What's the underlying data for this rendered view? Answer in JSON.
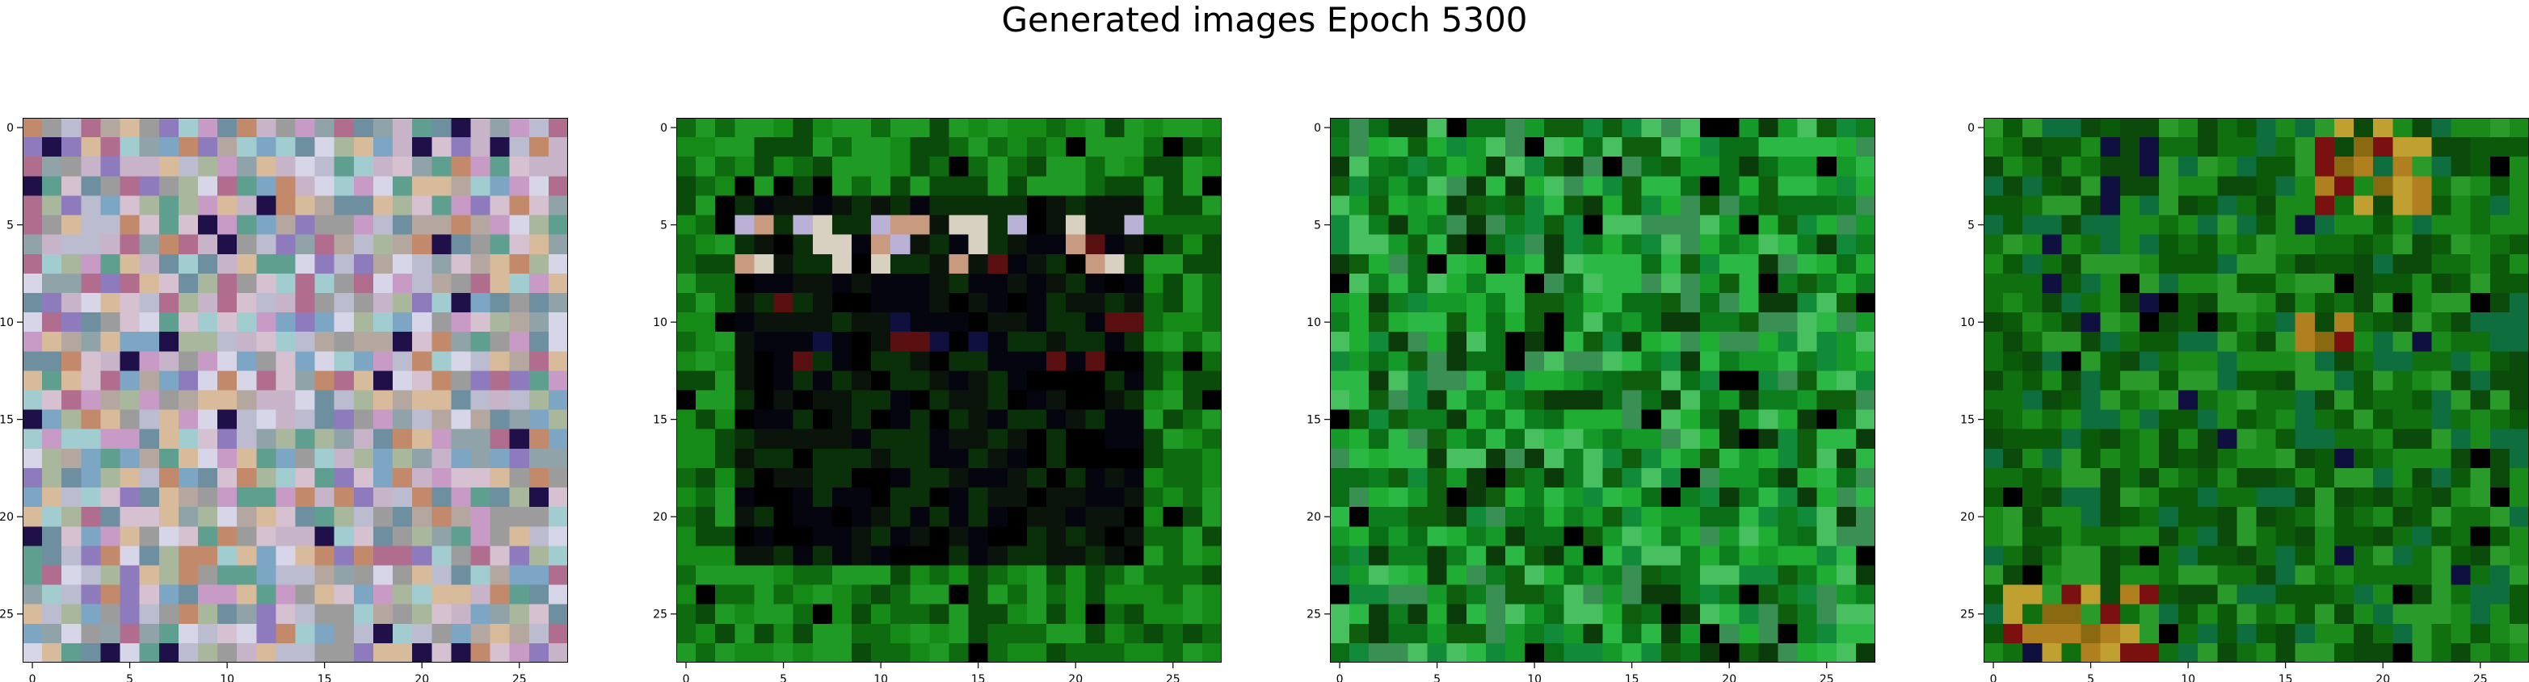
{
  "figure": {
    "suptitle": "Generated images Epoch 5300"
  },
  "chart_data": [
    {
      "type": "heatmap",
      "grid_size": 28,
      "xticks": [
        0,
        5,
        10,
        15,
        20,
        25
      ],
      "yticks": [
        0,
        5,
        10,
        15,
        20,
        25
      ],
      "pattern": "pastel-noise",
      "palette": [
        "#b4a7a0",
        "#c8b4c8",
        "#8fa3a9",
        "#d6c1d1",
        "#a9b79d",
        "#bcbcd0",
        "#6e8fa0",
        "#c79bc5",
        "#a2cdd0",
        "#d7bb9a",
        "#8d7bbd",
        "#9c9c9c",
        "#5f9f8f",
        "#b06d8e",
        "#d6d6e8",
        "#7da6c4",
        "#c28a6a",
        "#20104a"
      ]
    },
    {
      "type": "heatmap",
      "grid_size": 28,
      "xticks": [
        0,
        5,
        10,
        15,
        20,
        25
      ],
      "yticks": [
        0,
        5,
        10,
        15,
        20,
        25
      ],
      "pattern": "dark-square-on-green",
      "palette": [
        "#0a4a0a",
        "#0f6b0f",
        "#168a16",
        "#1f9a25",
        "#0a300a",
        "#000000",
        "#050510",
        "#0b140b",
        "#d8d0c0",
        "#b9b2d6",
        "#c89a80",
        "#5a1010",
        "#101040"
      ]
    },
    {
      "type": "heatmap",
      "grid_size": 28,
      "xticks": [
        0,
        5,
        10,
        15,
        20,
        25
      ],
      "yticks": [
        0,
        5,
        10,
        15,
        20,
        25
      ],
      "pattern": "green-noise",
      "palette": [
        "#159a2a",
        "#1fae32",
        "#0e7d1e",
        "#2bb845",
        "#118a3a",
        "#0a6e16",
        "#48c060",
        "#0e5e0e",
        "#000000",
        "#0b3b0b",
        "#3a8f55"
      ]
    },
    {
      "type": "heatmap",
      "grid_size": 28,
      "xticks": [
        0,
        5,
        10,
        15,
        20,
        25
      ],
      "yticks": [
        0,
        5,
        10,
        15,
        20,
        25
      ],
      "pattern": "green-noise-warm",
      "palette": [
        "#0a5a0a",
        "#107010",
        "#1a8a1a",
        "#0c4a0c",
        "#2a9a2a",
        "#000000",
        "#101040",
        "#8a6a10",
        "#b08020",
        "#7a1010",
        "#c0a030",
        "#0e6e3e"
      ]
    }
  ]
}
